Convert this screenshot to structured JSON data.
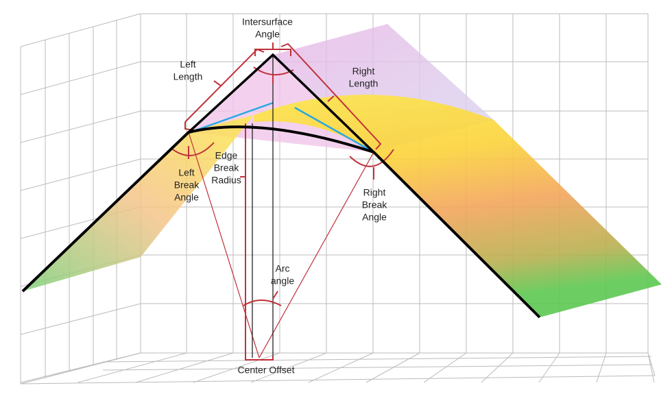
{
  "labels": {
    "intersurface_angle": [
      "Intersurface",
      "Angle"
    ],
    "left_length": [
      "Left",
      "Length"
    ],
    "right_length": [
      "Right",
      "Length"
    ],
    "edge_break_radius": [
      "Edge",
      "Break",
      "Radius"
    ],
    "left_break_angle": [
      "Left",
      "Break",
      "Angle"
    ],
    "right_break_angle": [
      "Right",
      "Break",
      "Angle"
    ],
    "arc_angle": [
      "Arc",
      "angle"
    ],
    "center_offset": [
      "Center Offset"
    ]
  }
}
